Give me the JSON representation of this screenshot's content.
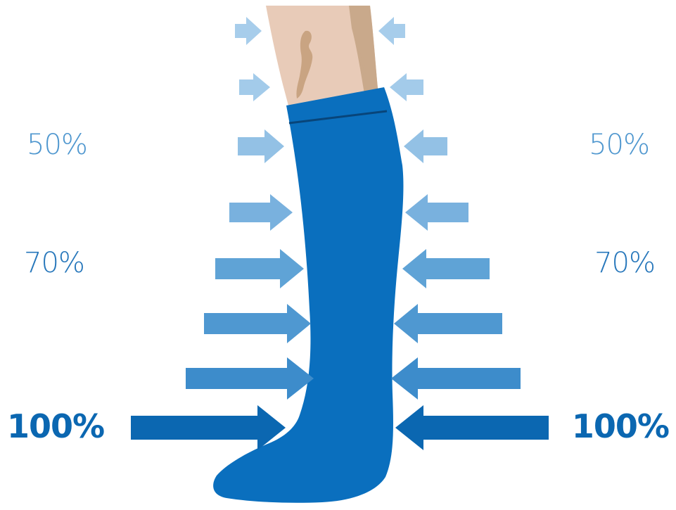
{
  "labels": {
    "left_top": "50%",
    "left_mid": "70%",
    "left_bottom": "100%",
    "right_top": "50%",
    "right_mid": "70%",
    "right_bottom": "100%"
  },
  "colors": {
    "sock": "#0a6fbe",
    "sock_band_line": "#08457a",
    "skin": "#e8cbb8",
    "skin_shadow": "#c9a98b",
    "vein": "#c9a482",
    "label_light": "#4f97cf",
    "label_mid": "#2777bb",
    "label_bold": "#0b67b1",
    "arrow_levels": [
      "#a7cdeb",
      "#a3cbea",
      "#93c1e5",
      "#79b1de",
      "#5fa3d6",
      "#4f98d1",
      "#3d8ccb",
      "#0b67b1"
    ]
  },
  "arrows": {
    "count_per_side": 8
  }
}
